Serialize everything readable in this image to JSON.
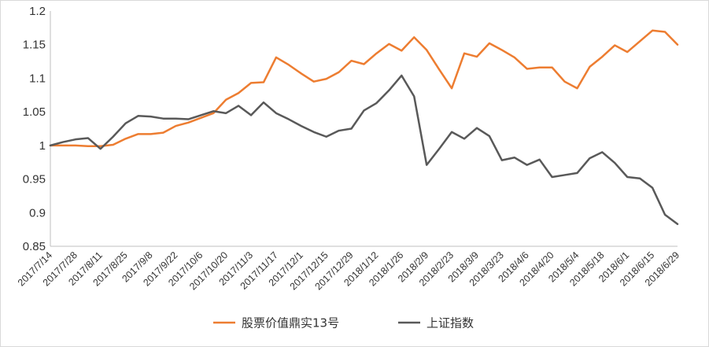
{
  "chart_data": {
    "type": "line",
    "title": "",
    "xlabel": "",
    "ylabel": "",
    "ylim": [
      0.85,
      1.2
    ],
    "yticks": [
      "0.85",
      "0.9",
      "0.95",
      "1",
      "1.05",
      "1.1",
      "1.15",
      "1.2"
    ],
    "ytick_values": [
      0.85,
      0.9,
      0.95,
      1.0,
      1.05,
      1.1,
      1.15,
      1.2
    ],
    "x_tick_labels": [
      "2017/7/14",
      "2017/7/28",
      "2017/8/11",
      "2017/8/25",
      "2017/9/8",
      "2017/9/22",
      "2017/10/6",
      "2017/10/20",
      "2017/11/3",
      "2017/11/17",
      "2017/12/1",
      "2017/12/15",
      "2017/12/29",
      "2018/1/12",
      "2018/1/26",
      "2018/2/9",
      "2018/2/23",
      "2018/3/9",
      "2018/3/23",
      "2018/4/6",
      "2018/4/20",
      "2018/5/4",
      "2018/5/18",
      "2018/6/1",
      "2018/6/15",
      "2018/6/29"
    ],
    "grid": false,
    "legend_position": "bottom",
    "series": [
      {
        "name": "股票价值鼎实13号",
        "color": "#ED7D31",
        "values": [
          1.0,
          1.0,
          1.0,
          0.999,
          0.999,
          1.001,
          1.01,
          1.017,
          1.017,
          1.019,
          1.029,
          1.034,
          1.041,
          1.048,
          1.068,
          1.078,
          1.093,
          1.094,
          1.131,
          1.12,
          1.107,
          1.095,
          1.099,
          1.109,
          1.126,
          1.121,
          1.137,
          1.151,
          1.141,
          1.161,
          1.142,
          1.113,
          1.085,
          1.137,
          1.132,
          1.152,
          1.142,
          1.131,
          1.114,
          1.116,
          1.116,
          1.095,
          1.085,
          1.117,
          1.132,
          1.149,
          1.139,
          1.155,
          1.171,
          1.169,
          1.15
        ]
      },
      {
        "name": "上证指数",
        "color": "#595959",
        "values": [
          1.0,
          1.005,
          1.009,
          1.011,
          0.995,
          1.013,
          1.033,
          1.044,
          1.043,
          1.04,
          1.04,
          1.039,
          1.045,
          1.051,
          1.048,
          1.059,
          1.045,
          1.064,
          1.048,
          1.039,
          1.029,
          1.02,
          1.013,
          1.022,
          1.025,
          1.052,
          1.063,
          1.082,
          1.104,
          1.073,
          0.971,
          0.995,
          1.02,
          1.01,
          1.026,
          1.014,
          0.978,
          0.982,
          0.971,
          0.979,
          0.953,
          0.956,
          0.959,
          0.981,
          0.99,
          0.974,
          0.953,
          0.951,
          0.937,
          0.897,
          0.883
        ]
      }
    ]
  }
}
